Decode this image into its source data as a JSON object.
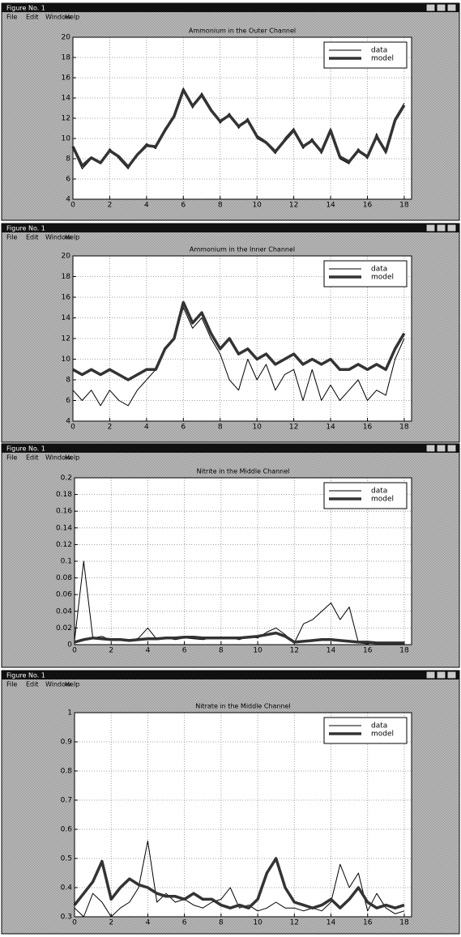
{
  "windows": [
    {
      "title": "Figure No. 1",
      "menu": [
        "File",
        "Edit",
        "Window",
        "Help"
      ]
    },
    {
      "title": "Figure No. 1",
      "menu": [
        "File",
        "Edit",
        "Window",
        "Help"
      ]
    },
    {
      "title": "Figure No. 1",
      "menu": [
        "File",
        "Edit",
        "Window",
        "Help"
      ]
    },
    {
      "title": "Figure No. 1",
      "menu": [
        "File",
        "Edit",
        "Window",
        "Help"
      ]
    }
  ],
  "chart_data": [
    {
      "type": "line",
      "title": "Ammonium in the Outer Channel",
      "x": [
        0,
        0.5,
        1,
        1.5,
        2,
        2.5,
        3,
        3.5,
        4,
        4.5,
        5,
        5.5,
        6,
        6.5,
        7,
        7.5,
        8,
        8.5,
        9,
        9.5,
        10,
        10.5,
        11,
        11.5,
        12,
        12.5,
        13,
        13.5,
        14,
        14.5,
        15,
        15.5,
        16,
        16.5,
        17,
        17.5,
        18
      ],
      "series": [
        {
          "name": "data",
          "color": "#000000",
          "line_width": 1,
          "values": [
            9,
            7,
            8,
            7.5,
            9,
            8,
            7,
            8.5,
            9.5,
            9,
            11,
            12,
            15,
            13,
            14.5,
            13,
            11.5,
            12.5,
            11,
            12,
            10,
            9.5,
            8.5,
            10,
            11,
            9,
            10,
            8.5,
            11,
            8,
            7.5,
            9,
            8,
            10.5,
            8.5,
            12,
            13.5
          ]
        },
        {
          "name": "model",
          "color": "#333333",
          "line_width": 3.5,
          "values": [
            9.2,
            7.3,
            8.1,
            7.6,
            8.8,
            8.2,
            7.2,
            8.4,
            9.3,
            9.2,
            10.8,
            12.2,
            14.8,
            13.2,
            14.3,
            12.8,
            11.7,
            12.3,
            11.2,
            11.8,
            10.2,
            9.6,
            8.7,
            9.8,
            10.8,
            9.2,
            9.8,
            8.7,
            10.8,
            8.2,
            7.7,
            8.8,
            8.2,
            10.2,
            8.7,
            11.8,
            13.3
          ]
        }
      ],
      "xlim": [
        0,
        18.4
      ],
      "xticks": [
        0,
        2,
        4,
        6,
        8,
        10,
        12,
        14,
        16,
        18
      ],
      "ylim": [
        4,
        20
      ],
      "yticks": [
        4,
        6,
        8,
        10,
        12,
        14,
        16,
        18,
        20
      ],
      "grid": true
    },
    {
      "type": "line",
      "title": "Ammonium in the Inner Channel",
      "x": [
        0,
        0.5,
        1,
        1.5,
        2,
        2.5,
        3,
        3.5,
        4,
        4.5,
        5,
        5.5,
        6,
        6.5,
        7,
        7.5,
        8,
        8.5,
        9,
        9.5,
        10,
        10.5,
        11,
        11.5,
        12,
        12.5,
        13,
        13.5,
        14,
        14.5,
        15,
        15.5,
        16,
        16.5,
        17,
        17.5,
        18
      ],
      "series": [
        {
          "name": "data",
          "color": "#000000",
          "line_width": 1,
          "values": [
            7,
            6,
            7,
            5.5,
            7,
            6,
            5.5,
            7,
            8,
            9,
            11,
            12,
            15,
            13,
            14,
            12,
            10.5,
            8,
            7,
            10,
            8,
            9.5,
            7,
            8.5,
            9,
            6,
            9,
            6,
            7.5,
            6,
            7,
            8,
            6,
            7,
            6.5,
            10,
            12
          ]
        },
        {
          "name": "model",
          "color": "#333333",
          "line_width": 3.5,
          "values": [
            9,
            8.5,
            9,
            8.5,
            9,
            8.5,
            8,
            8.5,
            9,
            9,
            11,
            12,
            15.5,
            13.5,
            14.5,
            12.5,
            11,
            12,
            10.5,
            11,
            10,
            10.5,
            9.5,
            10,
            10.5,
            9.5,
            10,
            9.5,
            10,
            9,
            9,
            9.5,
            9,
            9.5,
            9,
            11,
            12.5
          ]
        }
      ],
      "xlim": [
        0,
        18.4
      ],
      "xticks": [
        0,
        2,
        4,
        6,
        8,
        10,
        12,
        14,
        16,
        18
      ],
      "ylim": [
        4,
        20
      ],
      "yticks": [
        4,
        6,
        8,
        10,
        12,
        14,
        16,
        18,
        20
      ],
      "grid": true
    },
    {
      "type": "line",
      "title": "Nitrite in the Middle Channel",
      "x": [
        0,
        0.5,
        1,
        1.5,
        2,
        2.5,
        3,
        3.5,
        4,
        4.5,
        5,
        5.5,
        6,
        6.5,
        7,
        7.5,
        8,
        8.5,
        9,
        9.5,
        10,
        10.5,
        11,
        11.5,
        12,
        12.5,
        13,
        13.5,
        14,
        14.5,
        15,
        15.5,
        16,
        16.5,
        17,
        17.5,
        18
      ],
      "series": [
        {
          "name": "data",
          "color": "#000000",
          "line_width": 1,
          "values": [
            0.005,
            0.1,
            0.008,
            0.01,
            0.005,
            0.006,
            0.004,
            0.008,
            0.02,
            0.006,
            0.008,
            0.006,
            0.008,
            0.007,
            0.006,
            0.008,
            0.007,
            0.008,
            0.006,
            0.01,
            0.008,
            0.015,
            0.02,
            0.012,
            0.002,
            0.025,
            0.03,
            0.04,
            0.05,
            0.03,
            0.045,
            0.002,
            0.001,
            0.003,
            0.001,
            0.002,
            0.001
          ]
        },
        {
          "name": "model",
          "color": "#333333",
          "line_width": 3.5,
          "values": [
            0.003,
            0.006,
            0.008,
            0.007,
            0.006,
            0.006,
            0.005,
            0.006,
            0.007,
            0.007,
            0.008,
            0.008,
            0.009,
            0.009,
            0.008,
            0.008,
            0.008,
            0.008,
            0.008,
            0.009,
            0.01,
            0.012,
            0.014,
            0.01,
            0.003,
            0.004,
            0.005,
            0.006,
            0.006,
            0.005,
            0.004,
            0.003,
            0.003,
            0.002,
            0.002,
            0.002,
            0.002
          ]
        }
      ],
      "xlim": [
        0,
        18.4
      ],
      "xticks": [
        0,
        2,
        4,
        6,
        8,
        10,
        12,
        14,
        16,
        18
      ],
      "ylim": [
        0,
        0.2
      ],
      "yticks": [
        0,
        0.02,
        0.04,
        0.06,
        0.08,
        0.1,
        0.12,
        0.14,
        0.16,
        0.18,
        0.2
      ],
      "grid": true
    },
    {
      "type": "line",
      "title": "Nitrate in the Middle Channel",
      "x": [
        0,
        0.5,
        1,
        1.5,
        2,
        2.5,
        3,
        3.5,
        4,
        4.5,
        5,
        5.5,
        6,
        6.5,
        7,
        7.5,
        8,
        8.5,
        9,
        9.5,
        10,
        10.5,
        11,
        11.5,
        12,
        12.5,
        13,
        13.5,
        14,
        14.5,
        15,
        15.5,
        16,
        16.5,
        17,
        17.5,
        18
      ],
      "series": [
        {
          "name": "data",
          "color": "#000000",
          "line_width": 1,
          "values": [
            0.33,
            0.3,
            0.38,
            0.35,
            0.3,
            0.33,
            0.35,
            0.4,
            0.56,
            0.35,
            0.38,
            0.35,
            0.36,
            0.34,
            0.33,
            0.35,
            0.36,
            0.4,
            0.33,
            0.34,
            0.32,
            0.33,
            0.35,
            0.33,
            0.33,
            0.32,
            0.33,
            0.32,
            0.35,
            0.48,
            0.4,
            0.45,
            0.32,
            0.38,
            0.33,
            0.31,
            0.32
          ]
        },
        {
          "name": "model",
          "color": "#333333",
          "line_width": 3.5,
          "values": [
            0.34,
            0.38,
            0.42,
            0.49,
            0.36,
            0.4,
            0.43,
            0.41,
            0.4,
            0.38,
            0.37,
            0.37,
            0.36,
            0.38,
            0.36,
            0.36,
            0.34,
            0.33,
            0.34,
            0.33,
            0.36,
            0.45,
            0.5,
            0.4,
            0.35,
            0.34,
            0.33,
            0.34,
            0.36,
            0.33,
            0.36,
            0.4,
            0.35,
            0.33,
            0.34,
            0.33,
            0.34
          ]
        }
      ],
      "xlim": [
        0,
        18.4
      ],
      "xticks": [
        0,
        2,
        4,
        6,
        8,
        10,
        12,
        14,
        16,
        18
      ],
      "ylim": [
        0.3,
        1
      ],
      "yticks": [
        0.3,
        0.4,
        0.5,
        0.6,
        0.7,
        0.8,
        0.9,
        1
      ],
      "grid": true
    }
  ]
}
